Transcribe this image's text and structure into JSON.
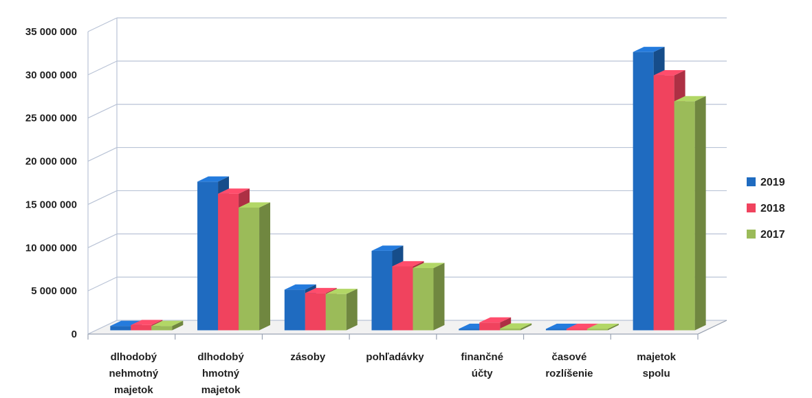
{
  "chart_data": {
    "type": "bar",
    "title": "",
    "xlabel": "",
    "ylabel": "",
    "ylim": [
      0,
      35000000
    ],
    "yticks": [
      0,
      5000000,
      10000000,
      15000000,
      20000000,
      25000000,
      30000000,
      35000000
    ],
    "ytick_labels": [
      "0",
      "5 000 000",
      "10 000 000",
      "15 000 000",
      "20 000 000",
      "25 000 000",
      "30 000 000",
      "35 000 000"
    ],
    "grid": true,
    "style": "3d-clustered-column",
    "legend_position": "right",
    "categories": [
      [
        "dlhodobý",
        "nehmotný",
        "majetok"
      ],
      [
        "dlhodobý",
        "hmotný",
        "majetok"
      ],
      [
        "zásoby"
      ],
      [
        "pohľadávky"
      ],
      [
        "finančné",
        "účty"
      ],
      [
        "časové",
        "rozlíšenie"
      ],
      [
        "majetok",
        "spolu"
      ]
    ],
    "series": [
      {
        "name": "2019",
        "color": "#1f6bc0",
        "values": [
          500000,
          17200000,
          4700000,
          9200000,
          100000,
          100000,
          32200000
        ]
      },
      {
        "name": "2018",
        "color": "#f0435e",
        "values": [
          600000,
          15800000,
          4300000,
          7400000,
          900000,
          100000,
          29500000
        ]
      },
      {
        "name": "2017",
        "color": "#9bbb59",
        "values": [
          500000,
          14200000,
          4200000,
          7200000,
          200000,
          100000,
          26500000
        ]
      }
    ]
  }
}
